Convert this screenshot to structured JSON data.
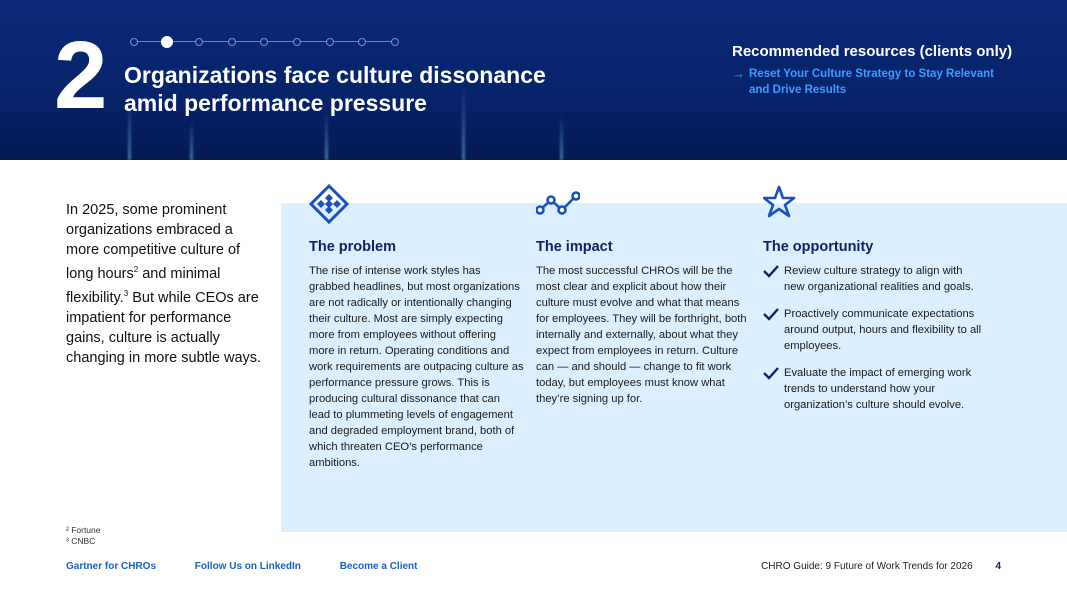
{
  "hero": {
    "number": "2",
    "title_line1": "Organizations face culture dissonance",
    "title_line2": "amid performance pressure",
    "progress": {
      "total": 9,
      "current": 2
    }
  },
  "resources": {
    "heading": "Recommended resources (clients only)",
    "link_line1": "Reset Your Culture Strategy to Stay Relevant",
    "link_line2": "and Drive Results",
    "link_color": "#3d9cff"
  },
  "intro": {
    "part1": "In 2025, some prominent organizations embraced a more competitive culture of long hours",
    "sup1": "2",
    "part2": " and minimal flexibility.",
    "sup2": "3",
    "part3": " But while CEOs are impatient for performance gains, culture is actually changing in more subtle ways."
  },
  "columns": {
    "problem": {
      "icon": "diamond-grid-icon",
      "title": "The problem",
      "body": "The rise of intense work styles has grabbed headlines, but most organizations are not radically or intentionally changing their culture. Most are simply expecting more from employees without offering more in return. Operating conditions and work requirements are outpacing culture as performance pressure grows. This is producing cultural dissonance that can lead to plummeting levels of engagement and degraded employment brand, both of which threaten CEO’s performance ambitions."
    },
    "impact": {
      "icon": "trend-line-icon",
      "title": "The impact",
      "body": "The most successful CHROs will be the most clear and explicit about how their culture must evolve and what that means for employees. They will be forthright, both internally and externally, about what they expect from employees in return. Culture can — and should — change to fit work today, but employees must know what they’re signing up for."
    },
    "opportunity": {
      "icon": "star-icon",
      "title": "The opportunity",
      "items": [
        "Review culture strategy to align with new organizational realities and goals.",
        "Proactively communicate expectations around output, hours and flexibility to all employees.",
        "Evaluate the impact of emerging work trends to understand how your organization’s culture should evolve."
      ]
    }
  },
  "footnotes": [
    "² Fortune",
    "³ CNBC"
  ],
  "footer": {
    "links": [
      "Gartner for CHROs",
      "Follow Us on LinkedIn",
      "Become a Client"
    ],
    "guide_title": "CHRO Guide: 9 Future of Work Trends for 2026",
    "page_number": "4"
  },
  "colors": {
    "hero_bg": "#06236a",
    "panel_bg": "#dcefff",
    "icon_blue": "#1a4fc0",
    "heading_navy": "#0b2462",
    "footer_link": "#1a62c6"
  }
}
